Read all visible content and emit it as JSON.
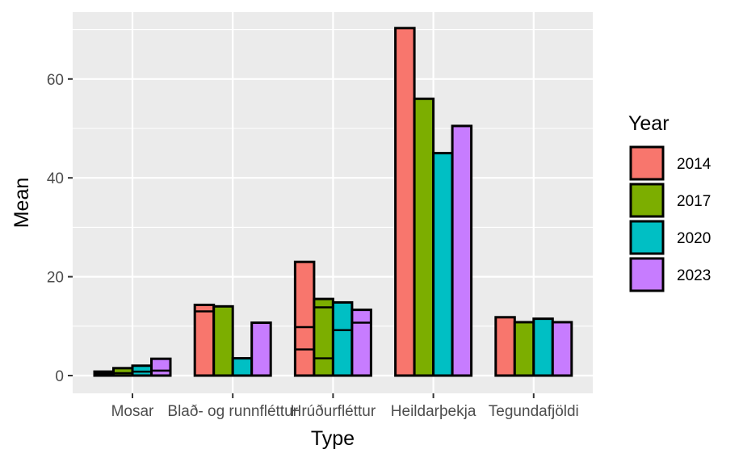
{
  "chart_data": {
    "type": "bar",
    "title": "",
    "xlabel": "Type",
    "ylabel": "Mean",
    "ylim": [
      -3.5,
      73
    ],
    "yticks": [
      0,
      20,
      40,
      60
    ],
    "grid": true,
    "legend_position": "right",
    "legend_title": "Year",
    "categories": [
      "Mosar",
      "Blað- og runnfléttur",
      "Hrúðurfléttur",
      "Heildarþekja",
      "Tegundafjöldi"
    ],
    "series": [
      {
        "name": "2014",
        "color": "#F8766D",
        "values": [
          0.8,
          14.3,
          23.0,
          70.3,
          11.8
        ]
      },
      {
        "name": "2017",
        "color": "#7CAE00",
        "values": [
          1.5,
          14.0,
          15.5,
          56.0,
          10.8
        ]
      },
      {
        "name": "2020",
        "color": "#00BFC4",
        "values": [
          2.0,
          3.5,
          14.8,
          45.0,
          11.5
        ]
      },
      {
        "name": "2023",
        "color": "#C77CFF",
        "values": [
          3.4,
          10.7,
          13.3,
          50.5,
          10.8
        ]
      }
    ],
    "stacked_segment_lines": [
      {
        "category": "Mosar",
        "series": "2014",
        "values": [
          0.4
        ]
      },
      {
        "category": "Mosar",
        "series": "2017",
        "values": [
          0.5
        ]
      },
      {
        "category": "Mosar",
        "series": "2020",
        "values": [
          0.8
        ]
      },
      {
        "category": "Mosar",
        "series": "2023",
        "values": [
          1.0
        ]
      },
      {
        "category": "Blað- og runnfléttur",
        "series": "2014",
        "values": [
          13.0
        ]
      },
      {
        "category": "Hrúðurfléttur",
        "series": "2014",
        "values": [
          5.3,
          9.8
        ]
      },
      {
        "category": "Hrúðurfléttur",
        "series": "2017",
        "values": [
          3.5,
          13.8
        ]
      },
      {
        "category": "Hrúðurfléttur",
        "series": "2020",
        "values": [
          9.2
        ]
      },
      {
        "category": "Hrúðurfléttur",
        "series": "2023",
        "values": [
          10.7
        ]
      }
    ]
  }
}
